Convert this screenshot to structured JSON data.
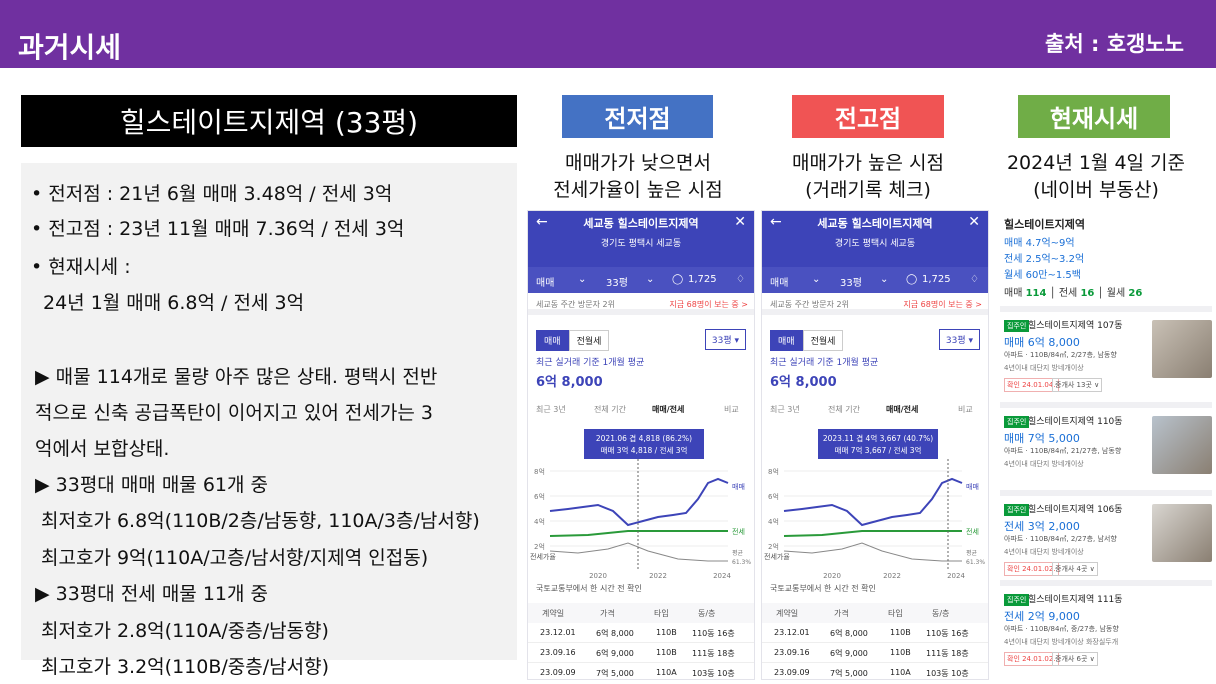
{
  "header": {
    "title": "과거시세",
    "source": "출처 : 호갱노노"
  },
  "apartment_title": "힐스테이트지제역 (33평)",
  "info_lines": [
    "• 전저점 : 21년 6월 매매 3.48억 / 전세 3억",
    "• 전고점 : 23년 11월 매매 7.36억 / 전세 3억",
    "• 현재시세 :",
    "24년 1월 매매 6.8억 / 전세 3억",
    "▶  매물 114개로 물량 아주 많은 상태. 평택시 전반",
    "적으로 신축 공급폭탄이 이어지고 있어 전세가는 3",
    "억에서 보합상태.",
    "▶  33평대 매매 매물 61개 중",
    "최저호가 6.8억(110B/2층/남동향, 110A/3층/남서향)",
    "최고호가 9억(110A/고층/남서향/지제역  인접동)",
    "▶  33평대 전세 매물 11개 중",
    "최저호가 2.8억(110A/중층/남동향)",
    "최고호가 3.2억(110B/중층/남서향)"
  ],
  "columns": [
    {
      "label": "전저점",
      "color": "#4472c4",
      "caption1": "매매가가 낮으면서",
      "caption2": "전세가율이 높은 시점"
    },
    {
      "label": "전고점",
      "color": "#f05454",
      "caption1": "매매가가 높은 시점",
      "caption2": "(거래기록 체크)"
    },
    {
      "label": "현재시세",
      "color": "#70ad47",
      "caption1": "2024년 1월 4일 기준",
      "caption2": "(네이버 부동산)"
    }
  ],
  "phone_common": {
    "title": "세교동 힐스테이트지제역",
    "address": "경기도 평택시 세교동",
    "bar_trade": "매매",
    "bar_size": "33평",
    "bar_count": "1,725",
    "visitors": "세교동 주간 방문자 2위",
    "viewing": "지금 68명이 보는 중 >",
    "tab_trade": "매매",
    "tab_rent": "전월세",
    "size_select": "33평 ▾",
    "note": "최근 실거래 기준 1개월 평균",
    "avg_price": "6억 8,000",
    "ptab1": "최근 3년",
    "ptab2": "전체 기간",
    "ptab3": "매매/전세",
    "ptab4": "비교",
    "y8": "8억",
    "y6": "6억",
    "y4": "4억",
    "y2": "2억",
    "x1": "2020",
    "x2": "2022",
    "x3": "2024",
    "legend_trade": "매매",
    "legend_rent": "전세",
    "legend_ratio": "전세가율",
    "ratio_label1": "평균",
    "ratio_label2": "61.3%",
    "notice": "국토교통부에서 한 시간 전 확인",
    "th": [
      "계약일",
      "가격",
      "타입",
      "동/층"
    ],
    "rows": [
      [
        "23.12.01",
        "6억 8,000",
        "110B",
        "110동 16층"
      ],
      [
        "23.09.16",
        "6억 9,000",
        "110B",
        "111동 18층"
      ],
      [
        "23.09.09",
        "7억 5,000",
        "110A",
        "103동 10층"
      ]
    ]
  },
  "phone_low": {
    "tooltip1": "2021.06  겹 4,818 (86.2%)",
    "tooltip2": "매매 3억 4,818 / 전세 3억"
  },
  "phone_high": {
    "tooltip1": "2023.11  겹 4억 3,667 (40.7%)",
    "tooltip2": "매매 7억 3,667 / 전세 3억"
  },
  "naver": {
    "title": "힐스테이트지제역",
    "trade_range": "매매 4.7억~9억",
    "rent_range": "전세 2.5억~3.2억",
    "monthly_range": "월세 60만~1.5백",
    "count_trade_label": "매매",
    "count_trade": "114",
    "count_rent_label": "전세",
    "count_rent": "16",
    "count_monthly_label": "월세",
    "count_monthly": "26",
    "items": [
      {
        "tag": "집주인",
        "name": "힐스테이트지제역 107동",
        "price": "매매 6억 8,000",
        "desc": "아파트 · 110B/84㎡, 2/27층, 남동향",
        "desc2": "4년이내  대단지  방네개이상",
        "date": "확인 24.01.04.",
        "agent": "중개사 13곳 ∨"
      },
      {
        "tag": "집주인",
        "name": "힐스테이트지제역 110동",
        "price": "매매 7억 5,000",
        "desc": "아파트 · 110B/84㎡, 21/27층, 남동향",
        "desc2": "4년이내  대단지  방네개이상",
        "date": "",
        "agent": ""
      },
      {
        "tag": "집주인",
        "name": "힐스테이트지제역 106동",
        "price": "전세 3억 2,000",
        "desc": "아파트 · 110B/84㎡, 2/27층, 남서향",
        "desc2": "4년이내  대단지  방네개이상",
        "date": "확인 24.01.02.",
        "agent": "중개사 4곳 ∨"
      },
      {
        "tag": "집주인",
        "name": "힐스테이트지제역 111동",
        "price": "전세 2억 9,000",
        "desc": "아파트 · 110B/84㎡, 중/27층, 남동향",
        "desc2": "4년이내  대단지  방네개이상  화장실두개",
        "date": "확인 24.01.02.",
        "agent": "중개사 6곳 ∨"
      }
    ]
  }
}
